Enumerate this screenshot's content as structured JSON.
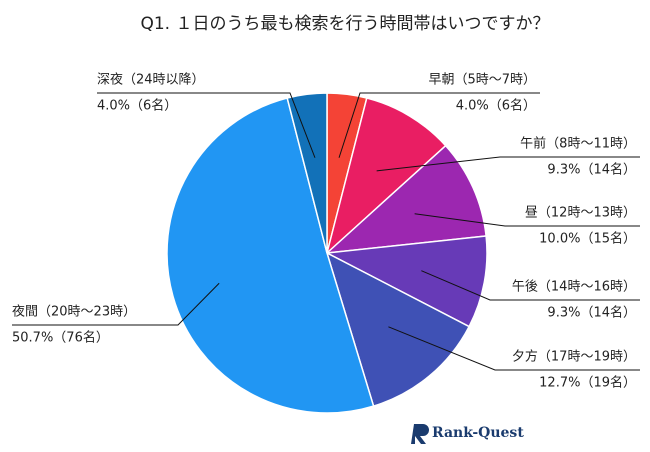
{
  "chart_data": {
    "type": "pie",
    "title": "Q1. １日のうち最も検索を行う時間帯はいつですか？",
    "categories": [
      "早朝（5時〜7時）",
      "午前（8時〜11時）",
      "昼（12時〜13時）",
      "午後（14時〜16時）",
      "夕方（17時〜19時）",
      "夜間（20時〜23時）",
      "深夜（24時以降）"
    ],
    "values": [
      4.0,
      9.3,
      10.0,
      9.3,
      12.7,
      50.7,
      4.0
    ],
    "value_labels": [
      "4.0%（6名）",
      "9.3%（14名）",
      "10.0%（15名）",
      "9.3%（14名）",
      "12.7%（19名）",
      "50.7%（76名）",
      "4.0%（6名）"
    ],
    "colors": [
      "#f44336",
      "#e91e63",
      "#9c27b0",
      "#673ab7",
      "#3f51b5",
      "#2196f3",
      "#1271b8"
    ]
  },
  "logo": "Rank-Quest"
}
